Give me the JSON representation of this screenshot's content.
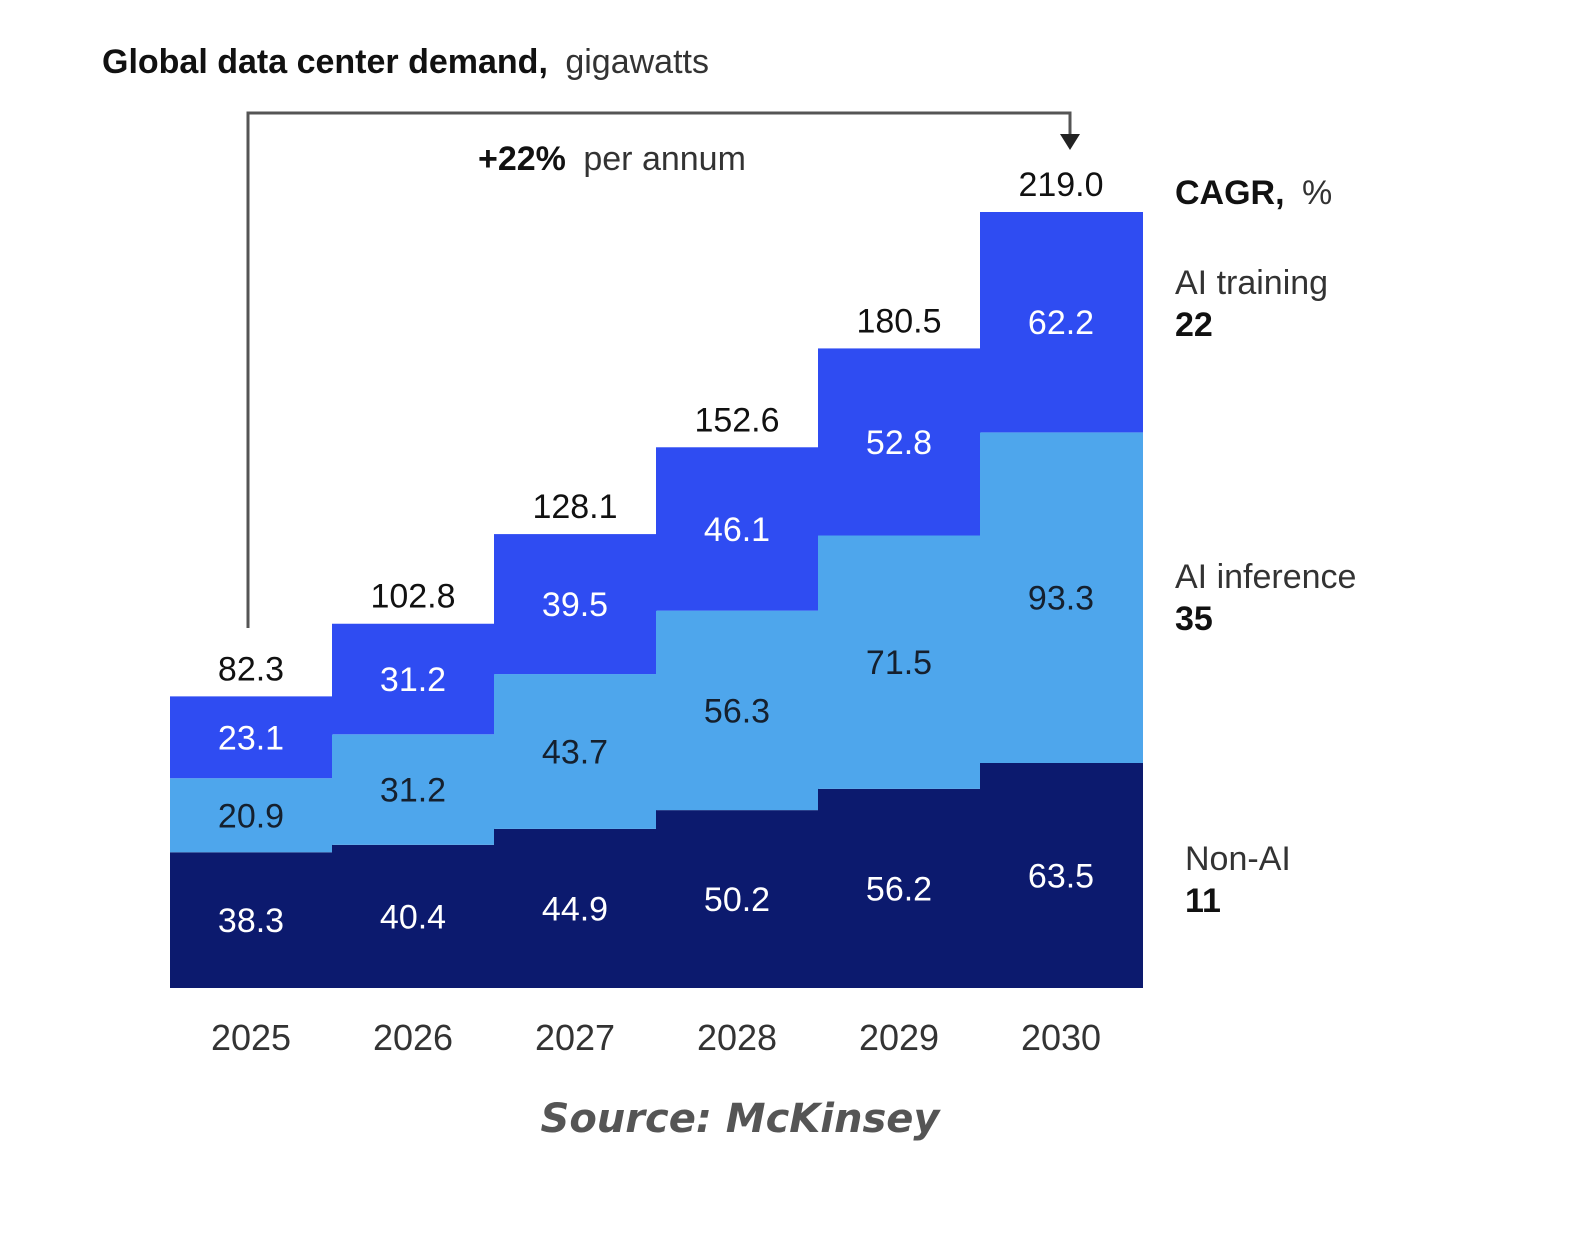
{
  "chart_data": {
    "type": "bar",
    "stacked": true,
    "title_bold": "Global data center demand,",
    "title_unit": "gigawatts",
    "categories": [
      "2025",
      "2026",
      "2027",
      "2028",
      "2029",
      "2030"
    ],
    "series": [
      {
        "name": "Non-AI",
        "cagr": "11",
        "color": "#0c1a6e",
        "label_color": "#ffffff",
        "values": [
          38.3,
          40.4,
          44.9,
          50.2,
          56.2,
          63.5
        ]
      },
      {
        "name": "AI inference",
        "cagr": "35",
        "color": "#4ea6ec",
        "label_color": "#15202e",
        "values": [
          20.9,
          31.2,
          43.7,
          56.3,
          71.5,
          93.3
        ]
      },
      {
        "name": "AI training",
        "cagr": "22",
        "color": "#2f4cf2",
        "label_color": "#ffffff",
        "values": [
          23.1,
          31.2,
          39.5,
          46.1,
          52.8,
          62.2
        ]
      }
    ],
    "totals": [
      "82.3",
      "102.8",
      "128.1",
      "152.6",
      "180.5",
      "219.0"
    ],
    "cagr_header_bold": "CAGR,",
    "cagr_header_unit": "%",
    "growth_annotation_bold": "+22%",
    "growth_annotation_rest": "per annum",
    "source": "Source: McKinsey",
    "ylim": [
      0,
      219
    ]
  }
}
